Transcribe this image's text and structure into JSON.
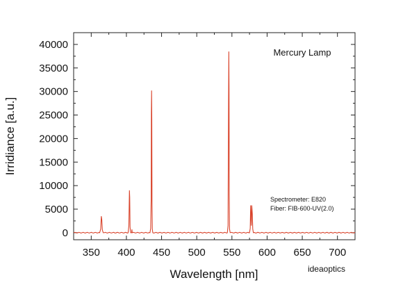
{
  "chart_data": {
    "type": "line",
    "title": "Mercury Lamp",
    "xlabel": "Wavelength [nm]",
    "ylabel": "Irridiance [a.u.]",
    "xlim": [
      325,
      725
    ],
    "ylim": [
      -1500,
      42500
    ],
    "x_ticks": [
      350,
      400,
      450,
      500,
      550,
      600,
      650,
      700
    ],
    "y_ticks": [
      0,
      5000,
      10000,
      15000,
      20000,
      25000,
      30000,
      35000,
      40000
    ],
    "grid": false,
    "series": [
      {
        "color": "#d9442c",
        "x": [
          325,
          362.0,
          363.5,
          364.3,
          365.0,
          365.8,
          367.0,
          402.5,
          403.5,
          404.3,
          404.7,
          405.2,
          406.0,
          407.5,
          407.8,
          408.2,
          433.5,
          434.5,
          435.2,
          435.5,
          435.8,
          436.1,
          436.4,
          436.8,
          437.5,
          543.5,
          544.5,
          545.2,
          545.6,
          545.9,
          546.2,
          546.6,
          547.5,
          575.0,
          576.0,
          576.6,
          577.0,
          577.6,
          578.2,
          579.0,
          579.6,
          580.5,
          725
        ],
        "values": [
          0,
          0,
          800,
          3500,
          2800,
          600,
          0,
          0,
          1500,
          9000,
          7500,
          1200,
          0,
          0,
          700,
          0,
          0,
          900,
          7000,
          25500,
          30200,
          24000,
          6500,
          800,
          0,
          0,
          1500,
          28000,
          38500,
          30500,
          8000,
          800,
          0,
          0,
          900,
          5800,
          4000,
          1500,
          5800,
          4000,
          800,
          0,
          0
        ]
      }
    ],
    "annotations": [
      "Spectrometer: E820",
      "Fiber: FIB-600-UV(2.0)"
    ],
    "watermark": "ideaoptics"
  }
}
